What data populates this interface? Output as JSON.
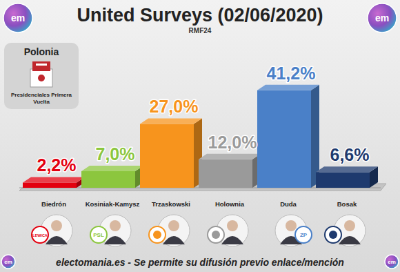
{
  "chart_data": {
    "type": "bar",
    "title": "United Surveys (02/06/2020)",
    "subtitle": "RMF24",
    "country": "Polonia",
    "election": "Presidenciales Primera Vuelta",
    "source_note": "electomania.es - Se permite su difusión previo enlace/mención",
    "logo_text": "em",
    "categories": [
      "Biedrón",
      "Kosiniak-Kamysz",
      "Trzaskowski",
      "Holownia",
      "Duda",
      "Bosak"
    ],
    "values": [
      2.2,
      7.0,
      27.0,
      12.0,
      41.2,
      6.6
    ],
    "value_labels": [
      "2,2%",
      "7,0%",
      "27,0%",
      "12,0%",
      "41,2%",
      "6,6%"
    ],
    "colors": [
      "#e3000f",
      "#8cc63e",
      "#f7941d",
      "#9a9a9a",
      "#4a80c8",
      "#1e3a6e"
    ],
    "badges": [
      "LEWICA",
      "PSL",
      null,
      null,
      "ZP",
      null
    ],
    "ylim": [
      0,
      42
    ],
    "data_labels": true,
    "tick_labels": "x",
    "grid": false
  }
}
